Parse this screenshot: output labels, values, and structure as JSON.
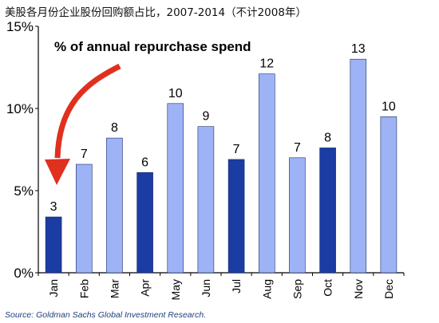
{
  "title": "美股各月份企业股份回购额占比，2007-2014（不计2008年）",
  "annotation": "% of annual repurchase spend",
  "source": "Source: Goldman Sachs Global Investment Research.",
  "colors": {
    "light_bar": "#9db3f5",
    "dark_bar": "#1a3ca3",
    "arrow": "#e0301e",
    "axis": "#000000"
  },
  "chart_data": {
    "type": "bar",
    "categories": [
      "Jan",
      "Feb",
      "Mar",
      "Apr",
      "May",
      "Jun",
      "Jul",
      "Aug",
      "Sep",
      "Oct",
      "Nov",
      "Dec"
    ],
    "values": [
      3.4,
      6.6,
      8.2,
      6.1,
      10.3,
      8.9,
      6.9,
      12.1,
      7.0,
      7.6,
      13.0,
      9.5
    ],
    "labels": [
      "3",
      "7",
      "8",
      "6",
      "10",
      "9",
      "7",
      "12",
      "7",
      "8",
      "13",
      "10"
    ],
    "highlighted": [
      "Jan",
      "Apr",
      "Jul",
      "Oct"
    ],
    "y_ticks": [
      "0%",
      "5%",
      "10%",
      "15%"
    ],
    "y_tick_values": [
      0,
      5,
      10,
      15
    ],
    "ylim": [
      0,
      15
    ],
    "title": "美股各月份企业股份回购额占比，2007-2014（不计2008年）",
    "xlabel": "",
    "ylabel": ""
  }
}
